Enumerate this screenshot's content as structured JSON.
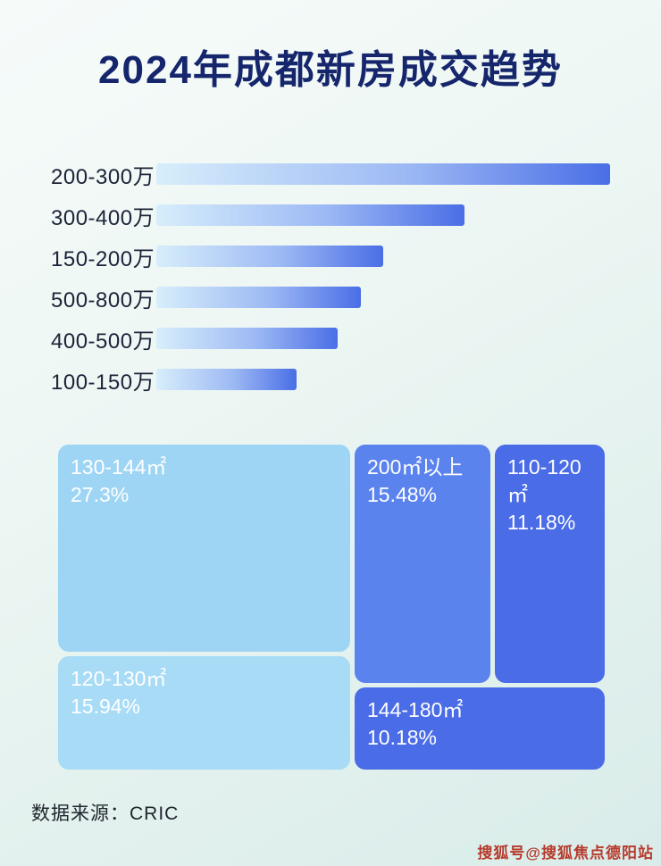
{
  "title": "2024年成都新房成交趋势",
  "chart_data": [
    {
      "type": "bar",
      "orientation": "horizontal",
      "title": "2024年成都新房成交趋势",
      "categories": [
        "200-300万",
        "300-400万",
        "150-200万",
        "500-800万",
        "400-500万",
        "100-150万"
      ],
      "values": [
        100,
        68,
        50,
        45,
        40,
        31
      ],
      "value_note": "relative bar length, % of longest bar (no numeric axis shown)",
      "xlabel": "",
      "ylabel": "",
      "grid": false,
      "legend": false,
      "bar_gradient": [
        "#d7eefb",
        "#4a6ee6"
      ]
    },
    {
      "type": "treemap",
      "items": [
        {
          "label": "130-144㎡",
          "value": "27.3%",
          "color": "#9ed5f4"
        },
        {
          "label": "200㎡以上",
          "value": "15.48%",
          "color": "#5b83ee"
        },
        {
          "label": "110-120㎡",
          "value": "11.18%",
          "color": "#4a6ce6"
        },
        {
          "label": "120-130㎡",
          "value": "15.94%",
          "color": "#a7dbf6"
        },
        {
          "label": "144-180㎡",
          "value": "10.18%",
          "color": "#4a6ce6"
        }
      ]
    }
  ],
  "footer": {
    "source": "数据来源：CRIC"
  },
  "watermark": "搜狐号@搜狐焦点德阳站",
  "colors": {
    "title": "#16266c",
    "bar_label": "#1b2438",
    "background_start": "#f6fbfa",
    "background_end": "#d9ece9",
    "watermark": "#b63a2c"
  }
}
